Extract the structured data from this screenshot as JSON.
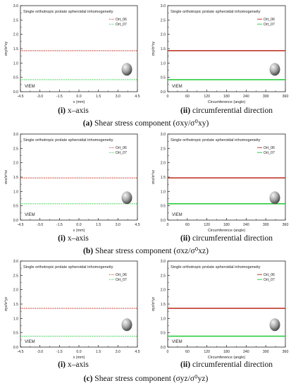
{
  "panels": [
    {
      "row": 0,
      "col": 0,
      "chart_data": {
        "type": "line",
        "title": "Single orthotropic prolate spheroidal inhomogeneity",
        "xlabel": "x (mm)",
        "ylabel": "σxy/σ⁰xy",
        "xlim": [
          -4.5,
          4.5
        ],
        "ylim": [
          0.0,
          3.0
        ],
        "xticks": [
          "-4.5",
          "-3.0",
          "-1.5",
          "0.0",
          "1.5",
          "3.0",
          "4.5"
        ],
        "yticks": [
          "0.0",
          "0.5",
          "1.0",
          "1.5",
          "2.0",
          "2.5",
          "3.0"
        ],
        "legend_position": "top-right",
        "annotation": "VIEM",
        "series": [
          {
            "name": "Ort_06",
            "color": "#c0392b",
            "style": "dotted",
            "x": [
              -4.5,
              4.5
            ],
            "y": [
              1.43,
              1.43
            ]
          },
          {
            "name": "Ort_07",
            "color": "#2ecc40",
            "style": "dotted",
            "x": [
              -4.5,
              4.5
            ],
            "y": [
              0.42,
              0.42
            ]
          }
        ]
      }
    },
    {
      "row": 0,
      "col": 1,
      "chart_data": {
        "type": "line",
        "title": "Single orthotropic prolate spheroidal inhomogeneity",
        "xlabel": "Circumference (angle)",
        "ylabel": "σxy/σ⁰xy",
        "xlim": [
          0,
          360
        ],
        "ylim": [
          0.0,
          3.0
        ],
        "xticks": [
          "0",
          "60",
          "120",
          "180",
          "240",
          "300",
          "360"
        ],
        "yticks": [
          "0.0",
          "0.5",
          "1.0",
          "1.5",
          "2.0",
          "2.5",
          "3.0"
        ],
        "legend_position": "top-right",
        "annotation": "VIEM",
        "series": [
          {
            "name": "Ort_06",
            "color": "#c0392b",
            "style": "solid",
            "x": [
              0,
              360
            ],
            "y": [
              1.43,
              1.43
            ]
          },
          {
            "name": "Ort_07",
            "color": "#2ecc40",
            "style": "solid",
            "x": [
              0,
              360
            ],
            "y": [
              0.42,
              0.42
            ]
          }
        ]
      }
    },
    {
      "row": 1,
      "col": 0,
      "chart_data": {
        "type": "line",
        "title": "Single orthotropic prolate spheroidal inhomogeneity",
        "xlabel": "x (mm)",
        "ylabel": "σxz/σ⁰xz",
        "xlim": [
          -4.5,
          4.5
        ],
        "ylim": [
          0.0,
          3.0
        ],
        "xticks": [
          "-4.5",
          "-3.0",
          "-1.5",
          "0.0",
          "1.5",
          "3.0",
          "4.5"
        ],
        "yticks": [
          "0.0",
          "0.5",
          "1.0",
          "1.5",
          "2.0",
          "2.5",
          "3.0"
        ],
        "legend_position": "top-right",
        "annotation": "VIEM",
        "series": [
          {
            "name": "Ort_06",
            "color": "#c0392b",
            "style": "dotted",
            "x": [
              -4.5,
              4.5
            ],
            "y": [
              1.47,
              1.47
            ]
          },
          {
            "name": "Ort_07",
            "color": "#2ecc40",
            "style": "dotted",
            "x": [
              -4.5,
              4.5
            ],
            "y": [
              0.57,
              0.57
            ]
          }
        ]
      }
    },
    {
      "row": 1,
      "col": 1,
      "chart_data": {
        "type": "line",
        "title": "Single orthotropic prolate spheroidal inhomogeneity",
        "xlabel": "Circumference (angle)",
        "ylabel": "σxz/σ⁰xz",
        "xlim": [
          0,
          360
        ],
        "ylim": [
          0.0,
          3.0
        ],
        "xticks": [
          "0",
          "60",
          "120",
          "180",
          "240",
          "300",
          "360"
        ],
        "yticks": [
          "0.0",
          "0.5",
          "1.0",
          "1.5",
          "2.0",
          "2.5",
          "3.0"
        ],
        "legend_position": "top-right",
        "annotation": "VIEM",
        "series": [
          {
            "name": "Ort_06",
            "color": "#c0392b",
            "style": "solid",
            "x": [
              0,
              360
            ],
            "y": [
              1.47,
              1.47
            ]
          },
          {
            "name": "Ort_07",
            "color": "#2ecc40",
            "style": "solid",
            "x": [
              0,
              360
            ],
            "y": [
              0.57,
              0.57
            ]
          }
        ]
      }
    },
    {
      "row": 2,
      "col": 0,
      "chart_data": {
        "type": "line",
        "title": "Single orthotropic prolate spheroidal inhomogeneity",
        "xlabel": "x (mm)",
        "ylabel": "σyz/σ⁰yz",
        "xlim": [
          -4.5,
          4.5
        ],
        "ylim": [
          0.0,
          3.0
        ],
        "xticks": [
          "-4.5",
          "-3.0",
          "-1.5",
          "0.0",
          "1.5",
          "3.0",
          "4.5"
        ],
        "yticks": [
          "0.0",
          "0.5",
          "1.0",
          "1.5",
          "2.0",
          "2.5",
          "3.0"
        ],
        "legend_position": "top-right",
        "annotation": "VIEM",
        "series": [
          {
            "name": "Ort_06",
            "color": "#c0392b",
            "style": "dotted",
            "x": [
              -4.5,
              4.5
            ],
            "y": [
              1.35,
              1.35
            ]
          },
          {
            "name": "Ort_07",
            "color": "#2ecc40",
            "style": "dotted",
            "x": [
              -4.5,
              4.5
            ],
            "y": [
              0.38,
              0.38
            ]
          }
        ]
      }
    },
    {
      "row": 2,
      "col": 1,
      "chart_data": {
        "type": "line",
        "title": "Single orthotropic prolate spheroidal inhomogeneity",
        "xlabel": "Circumference (angle)",
        "ylabel": "σyz/σ⁰yz",
        "xlim": [
          0,
          360
        ],
        "ylim": [
          0.0,
          3.0
        ],
        "xticks": [
          "0",
          "60",
          "120",
          "180",
          "240",
          "300",
          "360"
        ],
        "yticks": [
          "0.0",
          "0.5",
          "1.0",
          "1.5",
          "2.0",
          "2.5",
          "3.0"
        ],
        "legend_position": "top-right",
        "annotation": "VIEM",
        "series": [
          {
            "name": "Ort_06",
            "color": "#c0392b",
            "style": "solid",
            "x": [
              0,
              360
            ],
            "y": [
              1.35,
              1.35
            ]
          },
          {
            "name": "Ort_07",
            "color": "#2ecc40",
            "style": "solid",
            "x": [
              0,
              360
            ],
            "y": [
              0.38,
              0.38
            ]
          }
        ]
      }
    }
  ],
  "panel_labels": [
    {
      "tag": "(i)",
      "text": "x–axis"
    },
    {
      "tag": "(ii)",
      "text": "circumferential direction"
    }
  ],
  "captions": [
    {
      "tag": "(a)",
      "text": "Shear stress component (σxy/σ⁰xy)"
    },
    {
      "tag": "(b)",
      "text": "Shear stress component (σxz/σ⁰xz)"
    },
    {
      "tag": "(c)",
      "text": "Shear stress component (σyz/σ⁰yz)"
    }
  ]
}
